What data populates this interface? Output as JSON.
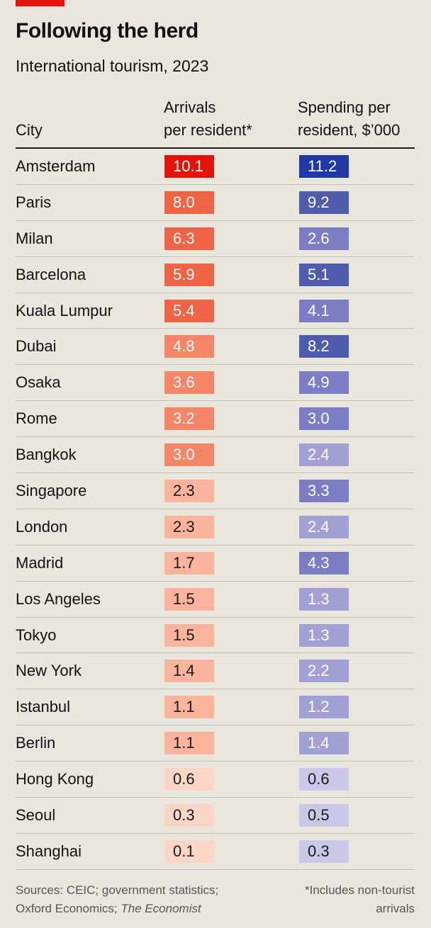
{
  "title": "Following the herd",
  "subtitle": "International tourism, 2023",
  "columns": {
    "city": "City",
    "arrivals_line1": "Arrivals",
    "arrivals_line2": "per resident*",
    "spending_line1": "Spending per",
    "spending_line2": "resident, $’000"
  },
  "sources": {
    "line1": "Sources: CEIC; government statistics;",
    "line2_prefix": "Oxford Economics; ",
    "line2_italic": "The Economist"
  },
  "footnote": {
    "line1": "*Includes non-tourist",
    "line2": "arrivals"
  },
  "colors": {
    "arrivals_scale": [
      "#fbd6c6",
      "#f9b49b",
      "#f48567",
      "#ef6445",
      "#e3120b"
    ],
    "spending_scale": [
      "#c9c8e8",
      "#a1a1d6",
      "#7b7ec5",
      "#4f5bab",
      "#2037a6"
    ],
    "text_light": "#ffffff",
    "text_dark": "#1a1a1a"
  },
  "chart_data": {
    "type": "table",
    "title": "Following the herd",
    "subtitle": "International tourism, 2023",
    "columns": [
      "City",
      "Arrivals per resident*",
      "Spending per resident, $’000"
    ],
    "rows": [
      {
        "city": "Amsterdam",
        "arrivals": "10.1",
        "spending": "11.2",
        "arr_level": 4,
        "spend_level": 4
      },
      {
        "city": "Paris",
        "arrivals": "8.0",
        "spending": "9.2",
        "arr_level": 3,
        "spend_level": 3
      },
      {
        "city": "Milan",
        "arrivals": "6.3",
        "spending": "2.6",
        "arr_level": 3,
        "spend_level": 2
      },
      {
        "city": "Barcelona",
        "arrivals": "5.9",
        "spending": "5.1",
        "arr_level": 3,
        "spend_level": 3
      },
      {
        "city": "Kuala Lumpur",
        "arrivals": "5.4",
        "spending": "4.1",
        "arr_level": 3,
        "spend_level": 2
      },
      {
        "city": "Dubai",
        "arrivals": "4.8",
        "spending": "8.2",
        "arr_level": 2,
        "spend_level": 3
      },
      {
        "city": "Osaka",
        "arrivals": "3.6",
        "spending": "4.9",
        "arr_level": 2,
        "spend_level": 2
      },
      {
        "city": "Rome",
        "arrivals": "3.2",
        "spending": "3.0",
        "arr_level": 2,
        "spend_level": 2
      },
      {
        "city": "Bangkok",
        "arrivals": "3.0",
        "spending": "2.4",
        "arr_level": 2,
        "spend_level": 1
      },
      {
        "city": "Singapore",
        "arrivals": "2.3",
        "spending": "3.3",
        "arr_level": 1,
        "spend_level": 2
      },
      {
        "city": "London",
        "arrivals": "2.3",
        "spending": "2.4",
        "arr_level": 1,
        "spend_level": 1
      },
      {
        "city": "Madrid",
        "arrivals": "1.7",
        "spending": "4.3",
        "arr_level": 1,
        "spend_level": 2
      },
      {
        "city": "Los Angeles",
        "arrivals": "1.5",
        "spending": "1.3",
        "arr_level": 1,
        "spend_level": 1
      },
      {
        "city": "Tokyo",
        "arrivals": "1.5",
        "spending": "1.3",
        "arr_level": 1,
        "spend_level": 1
      },
      {
        "city": "New York",
        "arrivals": "1.4",
        "spending": "2.2",
        "arr_level": 1,
        "spend_level": 1
      },
      {
        "city": "Istanbul",
        "arrivals": "1.1",
        "spending": "1.2",
        "arr_level": 1,
        "spend_level": 1
      },
      {
        "city": "Berlin",
        "arrivals": "1.1",
        "spending": "1.4",
        "arr_level": 1,
        "spend_level": 1
      },
      {
        "city": "Hong Kong",
        "arrivals": "0.6",
        "spending": "0.6",
        "arr_level": 0,
        "spend_level": 0
      },
      {
        "city": "Seoul",
        "arrivals": "0.3",
        "spending": "0.5",
        "arr_level": 0,
        "spend_level": 0
      },
      {
        "city": "Shanghai",
        "arrivals": "0.1",
        "spending": "0.3",
        "arr_level": 0,
        "spend_level": 0
      }
    ]
  }
}
